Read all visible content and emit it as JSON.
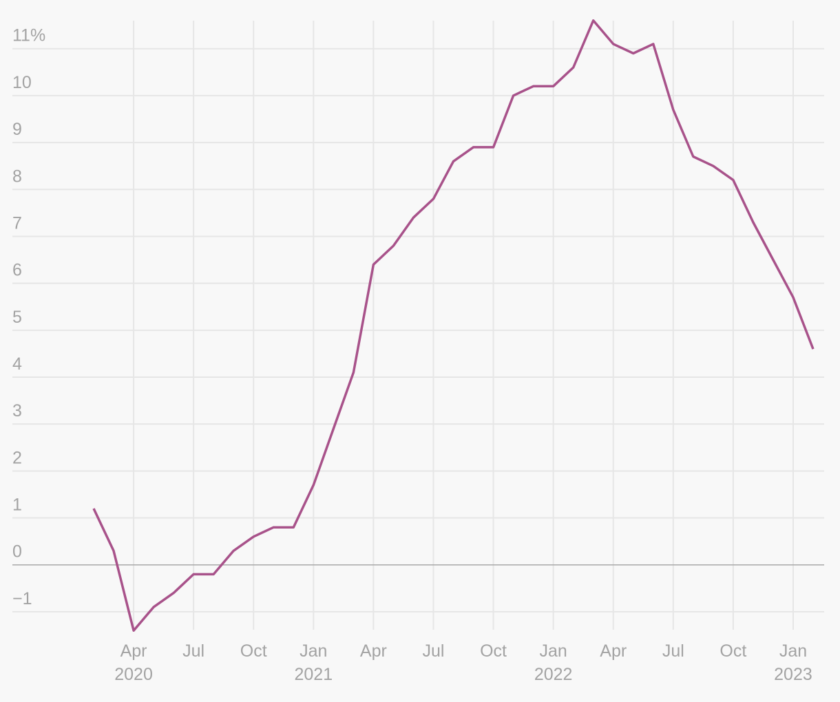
{
  "chart_data": {
    "type": "line",
    "categories": [
      null,
      null,
      "Apr\n2020",
      null,
      null,
      "Jul",
      null,
      null,
      "Oct",
      null,
      null,
      "Jan\n2021",
      null,
      null,
      "Apr",
      null,
      null,
      "Jul",
      null,
      null,
      "Oct",
      null,
      null,
      "Jan\n2022",
      null,
      null,
      "Apr",
      null,
      null,
      "Jul",
      null,
      null,
      "Oct",
      null,
      null,
      "Jan\n2023",
      null
    ],
    "values": [
      1.2,
      0.3,
      -1.4,
      -0.9,
      -0.6,
      -0.2,
      -0.2,
      0.3,
      0.6,
      0.8,
      0.8,
      1.7,
      2.9,
      4.1,
      6.4,
      6.8,
      7.4,
      7.8,
      8.6,
      8.9,
      8.9,
      10.0,
      10.2,
      10.2,
      10.6,
      11.6,
      11.1,
      10.9,
      11.1,
      9.7,
      8.7,
      8.5,
      8.2,
      7.3,
      6.5,
      5.7,
      4.6
    ],
    "color": "#a8528a",
    "ylim": [
      -1.5,
      11.7
    ],
    "yticks": [
      {
        "value": -1,
        "label": "−1"
      },
      0,
      1,
      2,
      3,
      4,
      5,
      6,
      7,
      8,
      9,
      10,
      {
        "value": 11,
        "label": "11%"
      }
    ],
    "grid": true
  }
}
